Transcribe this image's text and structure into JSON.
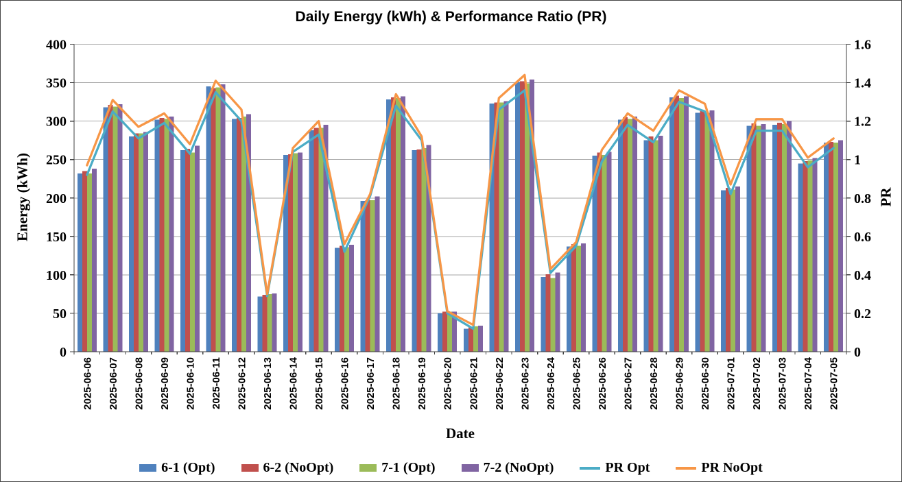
{
  "figure": {
    "title": "Daily Energy (kWh) & Performance Ratio (PR)"
  },
  "colors": {
    "background": "#FFFFFF",
    "grid": "#A6A6A6",
    "axis": "#3F3F3F",
    "border": "#444444"
  },
  "chart_data": {
    "type": "combo-bar-line",
    "title": "Daily Energy (kWh) & Performance Ratio (PR)",
    "grid": true,
    "legend_position": "bottom",
    "categories": [
      "2025-06-06",
      "2025-06-07",
      "2025-06-08",
      "2025-06-09",
      "2025-06-10",
      "2025-06-11",
      "2025-06-12",
      "2025-06-13",
      "2025-06-14",
      "2025-06-15",
      "2025-06-16",
      "2025-06-17",
      "2025-06-18",
      "2025-06-19",
      "2025-06-20",
      "2025-06-21",
      "2025-06-22",
      "2025-06-23",
      "2025-06-24",
      "2025-06-25",
      "2025-06-26",
      "2025-06-27",
      "2025-06-28",
      "2025-06-29",
      "2025-06-30",
      "2025-07-01",
      "2025-07-02",
      "2025-07-03",
      "2025-07-04",
      "2025-07-05"
    ],
    "bar_series": [
      {
        "name": "6-1 (Opt)",
        "color": "#4F81BD",
        "axis": "left",
        "values": [
          232,
          318,
          280,
          302,
          262,
          345,
          303,
          72,
          256,
          288,
          135,
          196,
          328,
          262,
          50,
          30,
          323,
          351,
          97,
          137,
          255,
          302,
          275,
          331,
          311,
          210,
          294,
          295,
          245,
          272
        ]
      },
      {
        "name": "6-2 (NoOpt)",
        "color": "#C0504D",
        "axis": "left",
        "values": [
          235,
          321,
          284,
          304,
          264,
          343,
          304,
          74,
          257,
          291,
          138,
          197,
          331,
          263,
          52,
          32,
          324,
          352,
          101,
          140,
          259,
          305,
          280,
          333,
          313,
          213,
          297,
          298,
          248,
          273
        ]
      },
      {
        "name": "7-1 (Opt)",
        "color": "#9BBB59",
        "axis": "left",
        "values": [
          232,
          319,
          284,
          303,
          259,
          344,
          306,
          75,
          258,
          291,
          136,
          197,
          330,
          265,
          52,
          33,
          324,
          349,
          96,
          138,
          256,
          303,
          275,
          330,
          311,
          211,
          294,
          296,
          249,
          272
        ]
      },
      {
        "name": "7-2 (NoOpt)",
        "color": "#8064A2",
        "axis": "left",
        "values": [
          238,
          322,
          286,
          306,
          268,
          348,
          309,
          76,
          259,
          295,
          139,
          202,
          332,
          269,
          52,
          34,
          326,
          354,
          103,
          141,
          260,
          306,
          281,
          332,
          314,
          215,
          296,
          300,
          252,
          275
        ]
      }
    ],
    "line_series": [
      {
        "name": "PR Opt",
        "color": "#4BACC6",
        "axis": "right",
        "values": [
          0.92,
          1.25,
          1.11,
          1.19,
          1.03,
          1.35,
          1.2,
          0.29,
          1.04,
          1.13,
          0.52,
          0.81,
          1.28,
          1.1,
          0.2,
          0.12,
          1.26,
          1.36,
          0.41,
          0.55,
          0.99,
          1.18,
          1.09,
          1.3,
          1.25,
          0.82,
          1.15,
          1.15,
          0.96,
          1.06
        ]
      },
      {
        "name": "PR NoOpt",
        "color": "#F79646",
        "axis": "right",
        "values": [
          0.97,
          1.31,
          1.17,
          1.24,
          1.08,
          1.41,
          1.26,
          0.3,
          1.06,
          1.2,
          0.56,
          0.82,
          1.34,
          1.12,
          0.21,
          0.14,
          1.32,
          1.44,
          0.43,
          0.57,
          1.05,
          1.24,
          1.15,
          1.36,
          1.29,
          0.87,
          1.21,
          1.21,
          1.01,
          1.11
        ]
      }
    ],
    "axes": {
      "left": {
        "title": "Energy (kWh)",
        "min": 0,
        "max": 400,
        "step": 50,
        "tick_labels": [
          "0",
          "50",
          "100",
          "150",
          "200",
          "250",
          "300",
          "350",
          "400"
        ]
      },
      "right": {
        "title": "PR",
        "min": 0,
        "max": 1.6,
        "step": 0.2,
        "tick_labels": [
          "0",
          "0.2",
          "0.4",
          "0.6",
          "0.8",
          "1",
          "1.2",
          "1.4",
          "1.6"
        ]
      },
      "x": {
        "title": "Date"
      }
    }
  }
}
